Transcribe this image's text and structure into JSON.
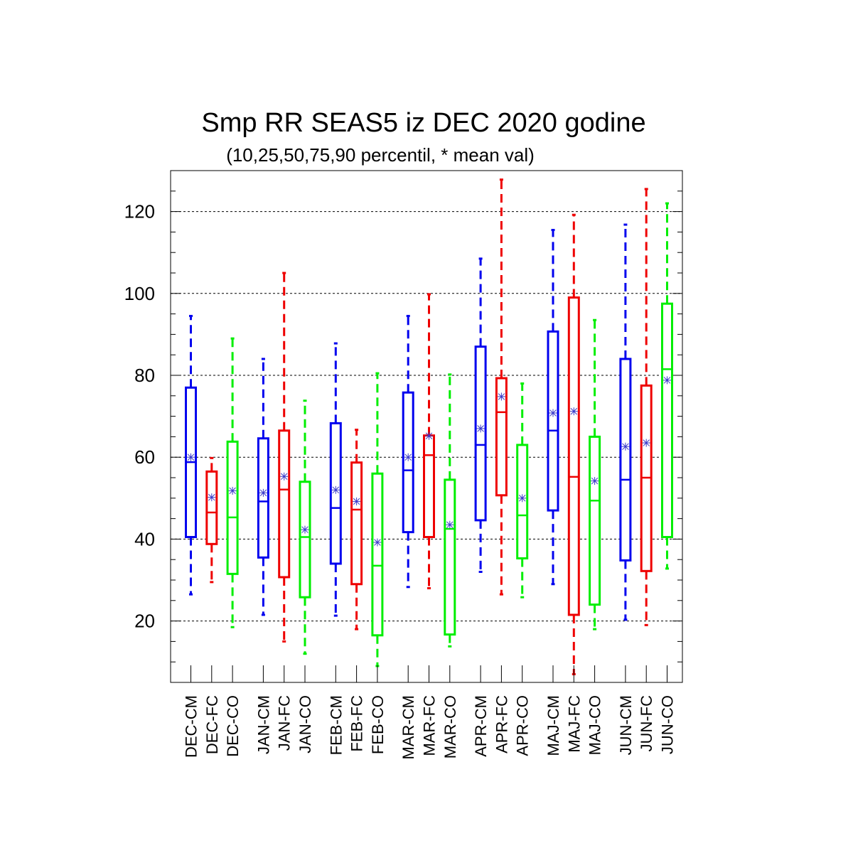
{
  "chart_data": {
    "type": "boxplot",
    "title": "Smp RR SEAS5 iz DEC 2020 godine",
    "subtitle": "(10,25,50,75,90 percentil, * mean val)",
    "xlabel": "",
    "ylabel": "",
    "ylim": [
      5,
      130
    ],
    "yticks": [
      20,
      40,
      60,
      80,
      100,
      120
    ],
    "grid": "horizontal dashed",
    "colors": {
      "CM": "#0000ee",
      "FC": "#ee0000",
      "CO": "#00ee00"
    },
    "boxes": [
      {
        "label": "DEC-CM",
        "group": "CM",
        "p10": 26.5,
        "p25": 40.5,
        "p50": 58.8,
        "p75": 77.0,
        "p90": 94.5,
        "mean": 60.0
      },
      {
        "label": "DEC-FC",
        "group": "FC",
        "p10": 29.5,
        "p25": 38.8,
        "p50": 46.5,
        "p75": 56.5,
        "p90": 59.8,
        "mean": 50.2
      },
      {
        "label": "DEC-CO",
        "group": "CO",
        "p10": 18.5,
        "p25": 31.5,
        "p50": 45.3,
        "p75": 63.8,
        "p90": 89.0,
        "mean": 51.8
      },
      {
        "label": "JAN-CM",
        "group": "CM",
        "p10": 21.5,
        "p25": 35.5,
        "p50": 49.2,
        "p75": 64.6,
        "p90": 84.0,
        "mean": 51.3
      },
      {
        "label": "JAN-FC",
        "group": "FC",
        "p10": 15.0,
        "p25": 30.7,
        "p50": 52.1,
        "p75": 66.5,
        "p90": 105.0,
        "mean": 55.3
      },
      {
        "label": "JAN-CO",
        "group": "CO",
        "p10": 12.0,
        "p25": 25.8,
        "p50": 40.5,
        "p75": 54.0,
        "p90": 73.8,
        "mean": 42.3
      },
      {
        "label": "FEB-CM",
        "group": "CM",
        "p10": 21.3,
        "p25": 34.0,
        "p50": 47.6,
        "p75": 68.3,
        "p90": 87.8,
        "mean": 52.0
      },
      {
        "label": "FEB-FC",
        "group": "FC",
        "p10": 18.0,
        "p25": 29.0,
        "p50": 47.2,
        "p75": 58.7,
        "p90": 66.7,
        "mean": 49.2
      },
      {
        "label": "FEB-CO",
        "group": "CO",
        "p10": 9.0,
        "p25": 16.5,
        "p50": 33.5,
        "p75": 56.0,
        "p90": 80.5,
        "mean": 39.2
      },
      {
        "label": "MAR-CM",
        "group": "CM",
        "p10": 28.3,
        "p25": 41.7,
        "p50": 56.8,
        "p75": 75.8,
        "p90": 94.5,
        "mean": 60.0
      },
      {
        "label": "MAR-FC",
        "group": "FC",
        "p10": 28.0,
        "p25": 40.5,
        "p50": 60.5,
        "p75": 65.3,
        "p90": 99.8,
        "mean": 65.2
      },
      {
        "label": "MAR-CO",
        "group": "CO",
        "p10": 13.8,
        "p25": 16.7,
        "p50": 42.5,
        "p75": 54.5,
        "p90": 80.2,
        "mean": 43.5
      },
      {
        "label": "APR-CM",
        "group": "CM",
        "p10": 32.0,
        "p25": 44.6,
        "p50": 63.0,
        "p75": 87.0,
        "p90": 108.5,
        "mean": 67.0
      },
      {
        "label": "APR-FC",
        "group": "FC",
        "p10": 26.5,
        "p25": 50.7,
        "p50": 71.0,
        "p75": 79.3,
        "p90": 127.8,
        "mean": 74.8
      },
      {
        "label": "APR-CO",
        "group": "CO",
        "p10": 25.8,
        "p25": 35.3,
        "p50": 45.8,
        "p75": 63.0,
        "p90": 78.0,
        "mean": 50.0
      },
      {
        "label": "MAJ-CM",
        "group": "CM",
        "p10": 29.0,
        "p25": 47.0,
        "p50": 66.5,
        "p75": 90.7,
        "p90": 115.5,
        "mean": 70.8
      },
      {
        "label": "MAJ-FC",
        "group": "FC",
        "p10": 7.0,
        "p25": 21.5,
        "p50": 55.2,
        "p75": 99.0,
        "p90": 119.2,
        "mean": 71.2
      },
      {
        "label": "MAJ-CO",
        "group": "CO",
        "p10": 18.0,
        "p25": 24.0,
        "p50": 49.4,
        "p75": 65.0,
        "p90": 93.5,
        "mean": 54.2
      },
      {
        "label": "JUN-CM",
        "group": "CM",
        "p10": 20.3,
        "p25": 34.8,
        "p50": 54.5,
        "p75": 84.0,
        "p90": 116.8,
        "mean": 62.6
      },
      {
        "label": "JUN-FC",
        "group": "FC",
        "p10": 19.0,
        "p25": 32.2,
        "p50": 55.0,
        "p75": 77.5,
        "p90": 125.5,
        "mean": 63.5
      },
      {
        "label": "JUN-CO",
        "group": "CO",
        "p10": 32.8,
        "p25": 40.5,
        "p50": 81.5,
        "p75": 97.5,
        "p90": 122.0,
        "mean": 78.8
      }
    ]
  }
}
